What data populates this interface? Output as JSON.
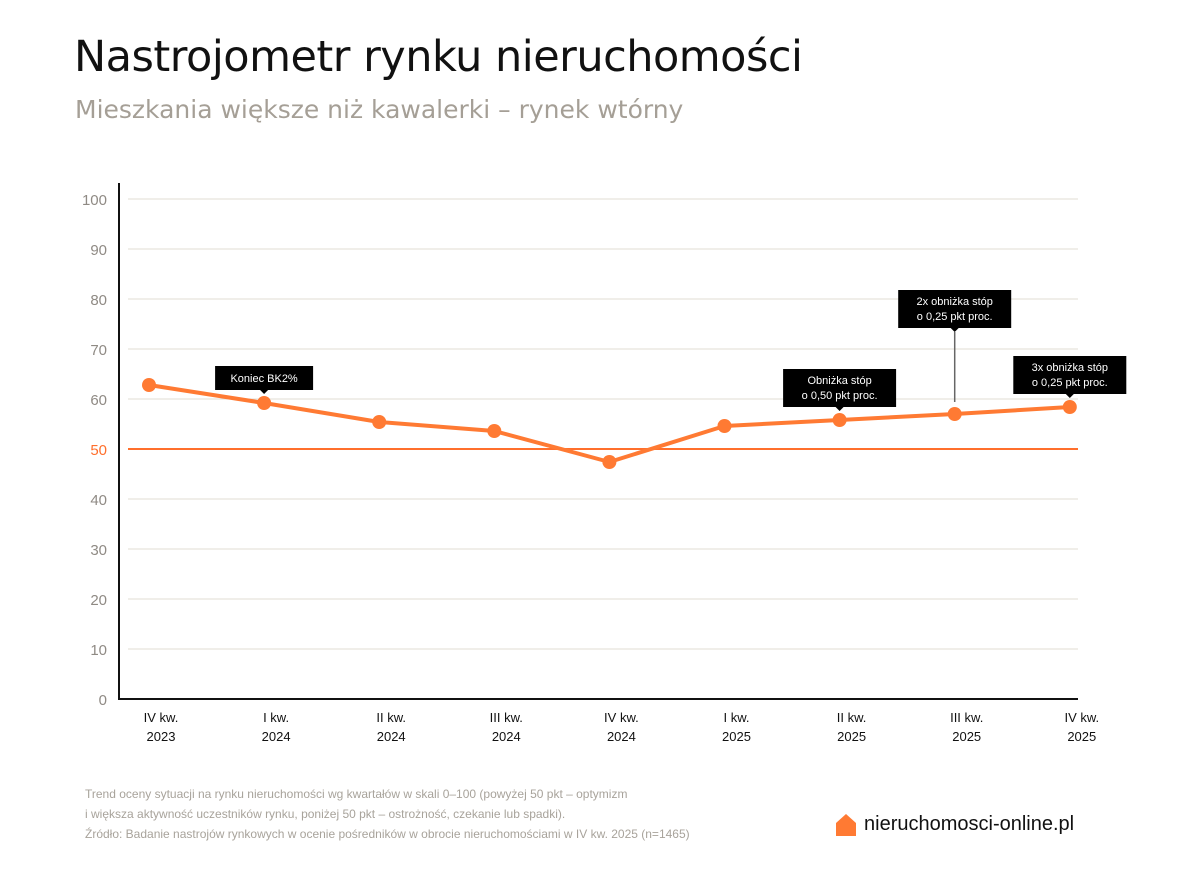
{
  "header": {
    "title": "Nastrojometr rynku nieruchomości",
    "subtitle": "Mieszkania większe niż kawalerki – rynek wtórny"
  },
  "chart_data": {
    "type": "line",
    "title": "Nastrojometr rynku nieruchomości",
    "subtitle": "Mieszkania większe niż kawalerki – rynek wtórny",
    "xlabel": "",
    "ylabel": "",
    "ylim": [
      0,
      100
    ],
    "yticks": [
      0,
      10,
      20,
      30,
      40,
      50,
      60,
      70,
      80,
      90,
      100
    ],
    "grid": true,
    "categories": [
      [
        "IV kw.",
        "2023"
      ],
      [
        "I kw.",
        "2024"
      ],
      [
        "II kw.",
        "2024"
      ],
      [
        "III kw.",
        "2024"
      ],
      [
        "IV kw.",
        "2024"
      ],
      [
        "I kw.",
        "2025"
      ],
      [
        "II kw.",
        "2025"
      ],
      [
        "III kw.",
        "2025"
      ],
      [
        "IV kw.",
        "2025"
      ]
    ],
    "values": [
      62.8,
      59.2,
      55.4,
      53.6,
      47.4,
      54.6,
      55.8,
      57.0,
      58.4
    ],
    "reference_line": {
      "value": 50,
      "color": "#ff6f2c"
    },
    "series_color": "#ff7a33",
    "annotations": [
      {
        "category_index": 1,
        "lines": [
          "Koniec BK2%"
        ]
      },
      {
        "category_index": 6,
        "lines": [
          "Obniżka stóp",
          "o 0,50 pkt proc."
        ]
      },
      {
        "category_index": 7,
        "lines": [
          "2x obniżka stóp",
          "o 0,25 pkt proc."
        ]
      },
      {
        "category_index": 8,
        "lines": [
          "3x obniżka stóp",
          "o 0,25 pkt proc."
        ]
      }
    ]
  },
  "footer": {
    "notes": [
      "Trend oceny sytuacji na rynku nieruchomości wg kwartałów w skali 0–100 (powyżej 50 pkt – optymizm",
      "i większa aktywność uczestników rynku,  poniżej 50 pkt – ostrożność, czekanie lub spadki).",
      "Źródło: Badanie nastrojów rynkowych w ocenie pośredników w obrocie nieruchomościami w IV kw. 2025 (n=1465)"
    ]
  },
  "logo": {
    "text": "nieruchomosci-online.pl",
    "icon": "house-icon",
    "color": "#ff7a33"
  }
}
